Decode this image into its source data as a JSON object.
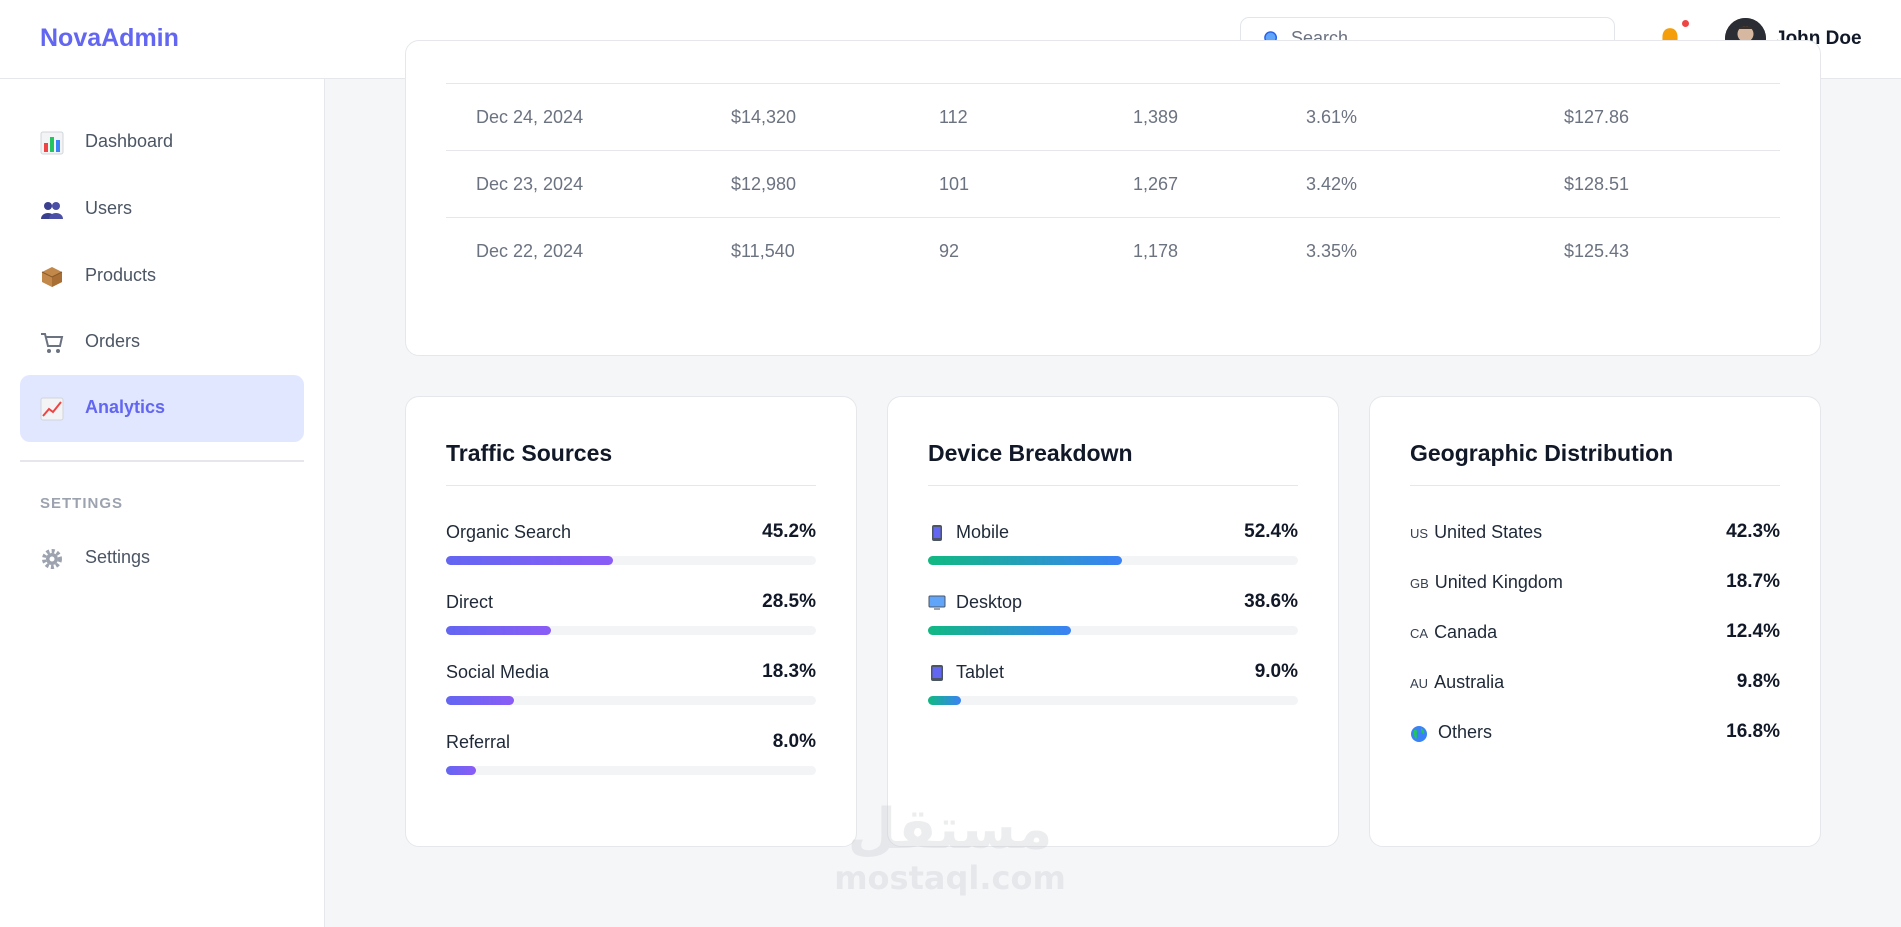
{
  "header": {
    "logo": "NovaAdmin",
    "search_placeholder": "Search...",
    "user_name": "John Doe"
  },
  "sidebar": {
    "items": [
      {
        "label": "Dashboard",
        "icon": "bar-chart-icon"
      },
      {
        "label": "Users",
        "icon": "users-icon"
      },
      {
        "label": "Products",
        "icon": "package-icon"
      },
      {
        "label": "Orders",
        "icon": "cart-icon"
      },
      {
        "label": "Analytics",
        "icon": "line-chart-icon",
        "active": true
      }
    ],
    "section_label": "SETTINGS",
    "settings_item": {
      "label": "Settings",
      "icon": "gear-icon"
    }
  },
  "table": {
    "rows": [
      [
        "Dec 24, 2024",
        "$14,320",
        "112",
        "1,389",
        "3.61%",
        "$127.86"
      ],
      [
        "Dec 23, 2024",
        "$12,980",
        "101",
        "1,267",
        "3.42%",
        "$128.51"
      ],
      [
        "Dec 22, 2024",
        "$11,540",
        "92",
        "1,178",
        "3.35%",
        "$125.43"
      ]
    ]
  },
  "traffic": {
    "title": "Traffic Sources",
    "items": [
      {
        "label": "Organic Search",
        "value": "45.2%",
        "fraction": 0.452
      },
      {
        "label": "Direct",
        "value": "28.5%",
        "fraction": 0.285
      },
      {
        "label": "Social Media",
        "value": "18.3%",
        "fraction": 0.183
      },
      {
        "label": "Referral",
        "value": "8.0%",
        "fraction": 0.08
      }
    ]
  },
  "devices": {
    "title": "Device Breakdown",
    "items": [
      {
        "label": "Mobile",
        "value": "52.4%",
        "fraction": 0.524,
        "icon": "mobile-icon"
      },
      {
        "label": "Desktop",
        "value": "38.6%",
        "fraction": 0.386,
        "icon": "desktop-icon"
      },
      {
        "label": "Tablet",
        "value": "9.0%",
        "fraction": 0.09,
        "icon": "tablet-icon"
      }
    ]
  },
  "geo": {
    "title": "Geographic Distribution",
    "items": [
      {
        "code": "US",
        "label": "United States",
        "value": "42.3%"
      },
      {
        "code": "GB",
        "label": "United Kingdom",
        "value": "18.7%"
      },
      {
        "code": "CA",
        "label": "Canada",
        "value": "12.4%"
      },
      {
        "code": "AU",
        "label": "Australia",
        "value": "9.8%"
      },
      {
        "code": "",
        "label": "Others",
        "value": "16.8%",
        "icon": "globe-icon"
      }
    ]
  },
  "watermark": {
    "arabic": "مستقل",
    "latin": "mostaql.com"
  },
  "colors": {
    "accent": "#6366f1",
    "notification": "#ef4444"
  }
}
